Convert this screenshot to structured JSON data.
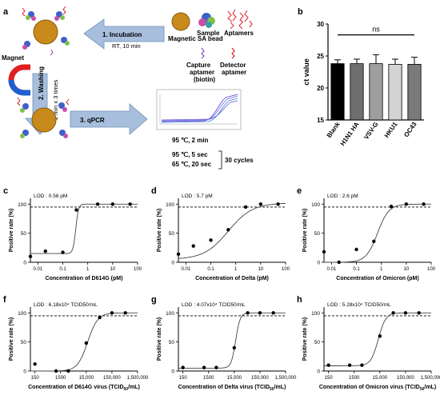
{
  "panel_a": {
    "label": "a",
    "step1": "1. Incubation",
    "step1_cond": "RT, 10 min",
    "step2": "2. Washing",
    "step2_cond": "2 min x 3 times",
    "step3": "3. qPCR",
    "magnet": "Magnet",
    "bead_label": "Magnetic SA bead",
    "sample_label": "Sample",
    "aptamers_label": "Aptamers",
    "capture_label": "Capture aptamer (biotin)",
    "detector_label": "Detector aptamer",
    "pcr_init": "95 ℃, 2 min",
    "pcr_c1": "95 ℃, 5 sec",
    "pcr_c2": "65 ℃, 20 sec",
    "cycles": "30 cycles",
    "colors": {
      "arrow": "#a7bfdd",
      "bead": "#c98a1c",
      "magnet_red": "#e02020",
      "magnet_blue": "#1f5fd0"
    }
  },
  "chart_data": [
    {
      "panel": "b",
      "type": "bar",
      "ylabel": "ct value",
      "ylim": [
        15,
        30
      ],
      "yticks": [
        15,
        20,
        25,
        30
      ],
      "categories": [
        "Blank",
        "H1N1 HA",
        "VSV-G",
        "HKU1",
        "OC43"
      ],
      "values": [
        23.8,
        23.8,
        23.8,
        23.7,
        23.7
      ],
      "errors": [
        0.6,
        0.7,
        1.4,
        0.8,
        1.1
      ],
      "colors": [
        "#000000",
        "#6e6e6e",
        "#9e9e9e",
        "#d3d3d3",
        "#7a7a7a"
      ],
      "annotation": "ns"
    },
    {
      "panel": "c",
      "type": "scatter",
      "xlabel": "Concentration of D614G (pM)",
      "ylabel": "Positive rate (%)",
      "lod": "LOD : 0.56 pM",
      "xscale": "log",
      "xlim": [
        0.005,
        100
      ],
      "ylim": [
        0,
        110
      ],
      "xticks": [
        0.01,
        0.1,
        1,
        10,
        100
      ],
      "xticklabels": [
        "0.01",
        "0.1",
        "1",
        "10",
        "100"
      ],
      "yticks": [
        0,
        50,
        100
      ],
      "x": [
        0.005,
        0.02,
        0.1,
        0.35,
        2.5,
        10,
        50
      ],
      "y": [
        10,
        19,
        17,
        90,
        100,
        100,
        100
      ],
      "fit": {
        "bottom": 15,
        "top": 100,
        "ec50": 0.33,
        "hill": 8
      }
    },
    {
      "panel": "d",
      "type": "scatter",
      "xlabel": "Concentration of Delta (pM)",
      "ylabel": "Positive rate (%)",
      "lod": "LOD : 5.7 pM",
      "xscale": "log",
      "xlim": [
        0.005,
        100
      ],
      "ylim": [
        0,
        110
      ],
      "xticks": [
        0.01,
        0.1,
        1,
        10,
        100
      ],
      "xticklabels": [
        "0.01",
        "0.1",
        "1",
        "10",
        "100"
      ],
      "yticks": [
        0,
        50,
        100
      ],
      "x": [
        0.005,
        0.02,
        0.1,
        0.5,
        2.5,
        10,
        50
      ],
      "y": [
        14,
        28,
        38,
        56,
        95,
        100,
        100
      ],
      "fit": {
        "bottom": 5,
        "top": 102,
        "ec50": 0.5,
        "hill": 0.9
      }
    },
    {
      "panel": "e",
      "type": "scatter",
      "xlabel": "Concentration of Omicron (pM)",
      "ylabel": "Positive rate (%)",
      "lod": "LOD : 2.6 pM",
      "xscale": "log",
      "xlim": [
        0.005,
        100
      ],
      "ylim": [
        0,
        110
      ],
      "xticks": [
        0.01,
        0.1,
        1,
        10,
        100
      ],
      "xticklabels": [
        "0.01",
        "0.1",
        "1",
        "10",
        "100"
      ],
      "yticks": [
        0,
        50,
        100
      ],
      "x": [
        0.005,
        0.02,
        0.1,
        0.5,
        2.5,
        10,
        50
      ],
      "y": [
        18,
        0,
        22,
        36,
        96,
        100,
        100
      ],
      "fit": {
        "bottom": 0,
        "top": 100,
        "ec50": 0.7,
        "hill": 1.9
      }
    },
    {
      "panel": "f",
      "type": "scatter",
      "xlabel": "Concentration of D614G virus (TCID50/mL)",
      "ylabel": "Positive rate (%)",
      "lod": "LOD : 6.18x10⁴ TCID50/mL",
      "xscale": "log",
      "xlim": [
        100,
        1500000
      ],
      "ylim": [
        0,
        110
      ],
      "xticks": [
        150,
        1500,
        15000,
        150000,
        1500000
      ],
      "xticklabels": [
        "150",
        "1500",
        "15,000",
        "150,000",
        "1,500,000"
      ],
      "yticks": [
        0,
        50,
        100
      ],
      "x": [
        150,
        1000,
        3000,
        15000,
        50000,
        150000,
        500000
      ],
      "y": [
        12,
        0,
        0,
        48,
        92,
        100,
        100
      ],
      "fit": {
        "bottom": 0,
        "top": 100,
        "ec50": 17000,
        "hill": 2.2
      }
    },
    {
      "panel": "g",
      "type": "scatter",
      "xlabel": "Concentration of Delta virus (TCID50/mL)",
      "ylabel": "Positive rate (%)",
      "lod": "LOD : 4.07x10⁴ TCID50/mL",
      "xscale": "log",
      "xlim": [
        100,
        1500000
      ],
      "ylim": [
        0,
        110
      ],
      "xticks": [
        150,
        1500,
        15000,
        150000,
        1500000
      ],
      "xticklabels": [
        "150",
        "1500",
        "15,000",
        "150,000",
        "1,500,000"
      ],
      "yticks": [
        0,
        50,
        100
      ],
      "x": [
        150,
        1000,
        3000,
        15000,
        50000,
        150000,
        500000
      ],
      "y": [
        6,
        6,
        6,
        40,
        100,
        100,
        100
      ],
      "fit": {
        "bottom": 5,
        "top": 100,
        "ec50": 17000,
        "hill": 5
      }
    },
    {
      "panel": "h",
      "type": "scatter",
      "xlabel": "Concentration of Omicron virus (TCID50/mL)",
      "ylabel": "Positive rate (%)",
      "lod": "LOD : 5.28x10⁴ TCID50/mL",
      "xscale": "log",
      "xlim": [
        100,
        1500000
      ],
      "ylim": [
        0,
        110
      ],
      "xticks": [
        150,
        1500,
        15000,
        150000,
        1500000
      ],
      "xticklabels": [
        "150",
        "1500",
        "15,000",
        "150,000",
        "1,500,000"
      ],
      "yticks": [
        0,
        50,
        100
      ],
      "x": [
        150,
        1000,
        3000,
        15000,
        50000,
        150000,
        500000
      ],
      "y": [
        10,
        10,
        10,
        60,
        100,
        100,
        100
      ],
      "fit": {
        "bottom": 9,
        "top": 100,
        "ec50": 13000,
        "hill": 3
      }
    }
  ]
}
